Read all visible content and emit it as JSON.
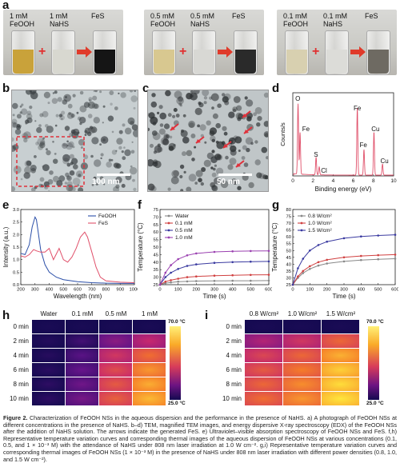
{
  "panel_labels": {
    "a": "a",
    "b": "b",
    "c": "c",
    "d": "d",
    "e": "e",
    "f": "f",
    "g": "g",
    "h": "h",
    "i": "i"
  },
  "photos": {
    "groups": [
      {
        "vials": [
          {
            "label": "1 mM\nFeOOH",
            "liquid": "#c9a23a"
          },
          {
            "label": "1 mM\nNaHS",
            "liquid": "#d8d8d0"
          },
          {
            "label": "FeS",
            "liquid": "#151515"
          }
        ]
      },
      {
        "vials": [
          {
            "label": "0.5 mM\nFeOOH",
            "liquid": "#d8c890"
          },
          {
            "label": "0.5 mM\nNaHS",
            "liquid": "#d8d8d4"
          },
          {
            "label": "FeS",
            "liquid": "#2a2a2a"
          }
        ]
      },
      {
        "vials": [
          {
            "label": "0.1 mM\nFeOOH",
            "liquid": "#d8d0b0"
          },
          {
            "label": "0.1 mM\nNaHS",
            "liquid": "#dcdcd8"
          },
          {
            "label": "FeS",
            "liquid": "#6e6a62"
          }
        ]
      }
    ],
    "plus": "+"
  },
  "tem": {
    "b_scale": "100 nm",
    "c_scale": "50 nm"
  },
  "edx": {
    "ylabel": "Counts/s",
    "xlabel": "Binding energy (eV)",
    "xticks": [
      "0",
      "2",
      "4",
      "6",
      "8",
      "10"
    ],
    "peaks": [
      {
        "label": "O"
      },
      {
        "label": "Fe"
      },
      {
        "label": "S"
      },
      {
        "label": "Cl"
      },
      {
        "label": "Fe"
      },
      {
        "label": "Fe"
      },
      {
        "label": "Cu"
      },
      {
        "label": "Cu"
      }
    ]
  },
  "chart_data": [
    {
      "type": "line",
      "panel": "e",
      "xlabel": "Wavelength (nm)",
      "ylabel": "Intensity (a.u.)",
      "xlim": [
        200,
        1000
      ],
      "ylim": [
        0.0,
        3.0
      ],
      "xticks": [
        "200",
        "300",
        "400",
        "500",
        "600",
        "700",
        "800",
        "900",
        "1000"
      ],
      "yticks": [
        "0.0",
        "0.5",
        "1.0",
        "1.5",
        "2.0",
        "2.5",
        "3.0"
      ],
      "legend": [
        "FeOOH",
        "FeS"
      ],
      "series": [
        {
          "name": "FeOOH",
          "color": "#2b4fa8",
          "x": [
            200,
            230,
            260,
            280,
            300,
            310,
            320,
            340,
            370,
            400,
            450,
            500,
            600,
            700,
            800,
            900,
            1000
          ],
          "y": [
            1.25,
            1.2,
            1.6,
            2.3,
            2.7,
            2.6,
            2.2,
            1.4,
            0.8,
            0.5,
            0.3,
            0.2,
            0.12,
            0.08,
            0.06,
            0.05,
            0.05
          ]
        },
        {
          "name": "FeS",
          "color": "#e0506a",
          "x": [
            200,
            230,
            260,
            290,
            310,
            340,
            370,
            400,
            430,
            470,
            500,
            530,
            560,
            590,
            620,
            650,
            670,
            700,
            730,
            760,
            800,
            900,
            1000
          ],
          "y": [
            1.15,
            1.1,
            1.2,
            1.4,
            1.35,
            1.3,
            1.3,
            1.45,
            1.0,
            1.45,
            1.0,
            0.9,
            1.1,
            1.45,
            1.9,
            2.1,
            1.9,
            1.3,
            0.7,
            0.3,
            0.15,
            0.1,
            0.08
          ]
        }
      ]
    },
    {
      "type": "line",
      "panel": "f",
      "xlabel": "Time (s)",
      "ylabel": "Temperature (°C)",
      "xlim": [
        0,
        600
      ],
      "ylim": [
        25,
        75
      ],
      "xticks": [
        "0",
        "100",
        "200",
        "300",
        "400",
        "500",
        "600"
      ],
      "yticks": [
        "25",
        "30",
        "35",
        "40",
        "45",
        "50",
        "55",
        "60",
        "65",
        "70",
        "75"
      ],
      "series": [
        {
          "name": "Water",
          "color": "#888888",
          "x": [
            0,
            30,
            60,
            100,
            150,
            200,
            300,
            400,
            500,
            600
          ],
          "y": [
            25,
            26,
            26.5,
            27,
            27.2,
            27.4,
            27.5,
            27.6,
            27.6,
            27.7
          ]
        },
        {
          "name": "0.1 mM",
          "color": "#d04040",
          "x": [
            0,
            30,
            60,
            100,
            150,
            200,
            300,
            400,
            500,
            600
          ],
          "y": [
            25,
            27,
            28,
            29,
            30,
            30.5,
            31,
            31.3,
            31.5,
            31.6
          ]
        },
        {
          "name": "0.5 mM",
          "color": "#3a3aa0",
          "x": [
            0,
            30,
            60,
            100,
            150,
            200,
            300,
            400,
            500,
            600
          ],
          "y": [
            25,
            30,
            33,
            35.5,
            37.5,
            38.5,
            39.5,
            40,
            40.3,
            40.5
          ]
        },
        {
          "name": "1.0 mM",
          "color": "#9a40b0",
          "x": [
            0,
            30,
            60,
            100,
            150,
            200,
            300,
            400,
            500,
            600
          ],
          "y": [
            25,
            33,
            38,
            42,
            44.5,
            45.8,
            46.8,
            47.2,
            47.4,
            47.5
          ]
        }
      ]
    },
    {
      "type": "line",
      "panel": "g",
      "xlabel": "Time (s)",
      "ylabel": "Temperature (°C)",
      "xlim": [
        0,
        600
      ],
      "ylim": [
        25,
        80
      ],
      "xticks": [
        "0",
        "100",
        "200",
        "300",
        "400",
        "500",
        "600"
      ],
      "yticks": [
        "25",
        "30",
        "35",
        "40",
        "45",
        "50",
        "55",
        "60",
        "65",
        "70",
        "75",
        "80"
      ],
      "series": [
        {
          "name": "0.8 W/cm²",
          "color": "#888888",
          "x": [
            0,
            30,
            60,
            100,
            150,
            200,
            300,
            400,
            500,
            600
          ],
          "y": [
            25,
            30,
            33.5,
            36.5,
            39,
            40.5,
            42,
            43,
            43.6,
            44
          ]
        },
        {
          "name": "1.0 W/cm²",
          "color": "#d04040",
          "x": [
            0,
            30,
            60,
            100,
            150,
            200,
            300,
            400,
            500,
            600
          ],
          "y": [
            25,
            31,
            35,
            38.5,
            41.5,
            43.2,
            45,
            46,
            46.6,
            47
          ]
        },
        {
          "name": "1.5 W/cm²",
          "color": "#3a3aa0",
          "x": [
            0,
            30,
            60,
            100,
            150,
            200,
            300,
            400,
            500,
            600
          ],
          "y": [
            25,
            37,
            44,
            50,
            54,
            56.5,
            59,
            60.3,
            61,
            61.5
          ]
        }
      ]
    }
  ],
  "thermal_h": {
    "columns": [
      "Water",
      "0.1 mM",
      "0.5 mM",
      "1 mM"
    ],
    "rows": [
      "0 min",
      "2 min",
      "4 min",
      "6 min",
      "8 min",
      "10 min"
    ],
    "levels": [
      [
        0.02,
        0.02,
        0.02,
        0.02
      ],
      [
        0.05,
        0.15,
        0.35,
        0.5
      ],
      [
        0.06,
        0.22,
        0.55,
        0.72
      ],
      [
        0.07,
        0.26,
        0.62,
        0.82
      ],
      [
        0.08,
        0.28,
        0.66,
        0.87
      ],
      [
        0.08,
        0.3,
        0.68,
        0.9
      ]
    ],
    "cmax": "70.0 °C",
    "cmin": "25.0 °C"
  },
  "thermal_i": {
    "columns": [
      "0.8 W/cm²",
      "1.0 W/cm²",
      "1.5 W/cm²"
    ],
    "rows": [
      "0 min",
      "2 min",
      "4 min",
      "6 min",
      "8 min",
      "10 min"
    ],
    "levels": [
      [
        0.02,
        0.02,
        0.02
      ],
      [
        0.45,
        0.55,
        0.7
      ],
      [
        0.6,
        0.7,
        0.88
      ],
      [
        0.66,
        0.76,
        0.95
      ],
      [
        0.7,
        0.8,
        0.98
      ],
      [
        0.72,
        0.82,
        1.0
      ]
    ],
    "cmax": "70.0 °C",
    "cmin": "25.0 °C"
  },
  "caption": {
    "lead": "Figure 2.",
    "text": "Characterization of FeOOH NSs in the aqueous dispersion and the performance in the presence of NaHS. a) A photograph of FeOOH NSs at different concentrations in the presence of NaHS. b–d) TEM, magnified TEM images, and energy dispersive X-ray spectroscopy (EDX) of the FeOOH NSs after the addition of NaHS solution. The arrows indicate the generated FeS. e) Ultraviolet–visible absorption spectroscopy of FeOOH NSs and FeS. f,h) Representative temperature variation curves and corresponding thermal images of the aqueous dispersion of FeOOH NSs at various concentrations (0.1, 0.5, and 1 × 10⁻³ M) with the attendance of NaHS under 808 nm laser irradiation at 1.0 W cm⁻². g,i) Representative temperature variation curves and corresponding thermal images of FeOOH NSs (1 × 10⁻³ M) in the presence of NaHS under 808 nm laser irradiation with different power densities (0.8, 1.0, and 1.5 W cm⁻²)."
  }
}
